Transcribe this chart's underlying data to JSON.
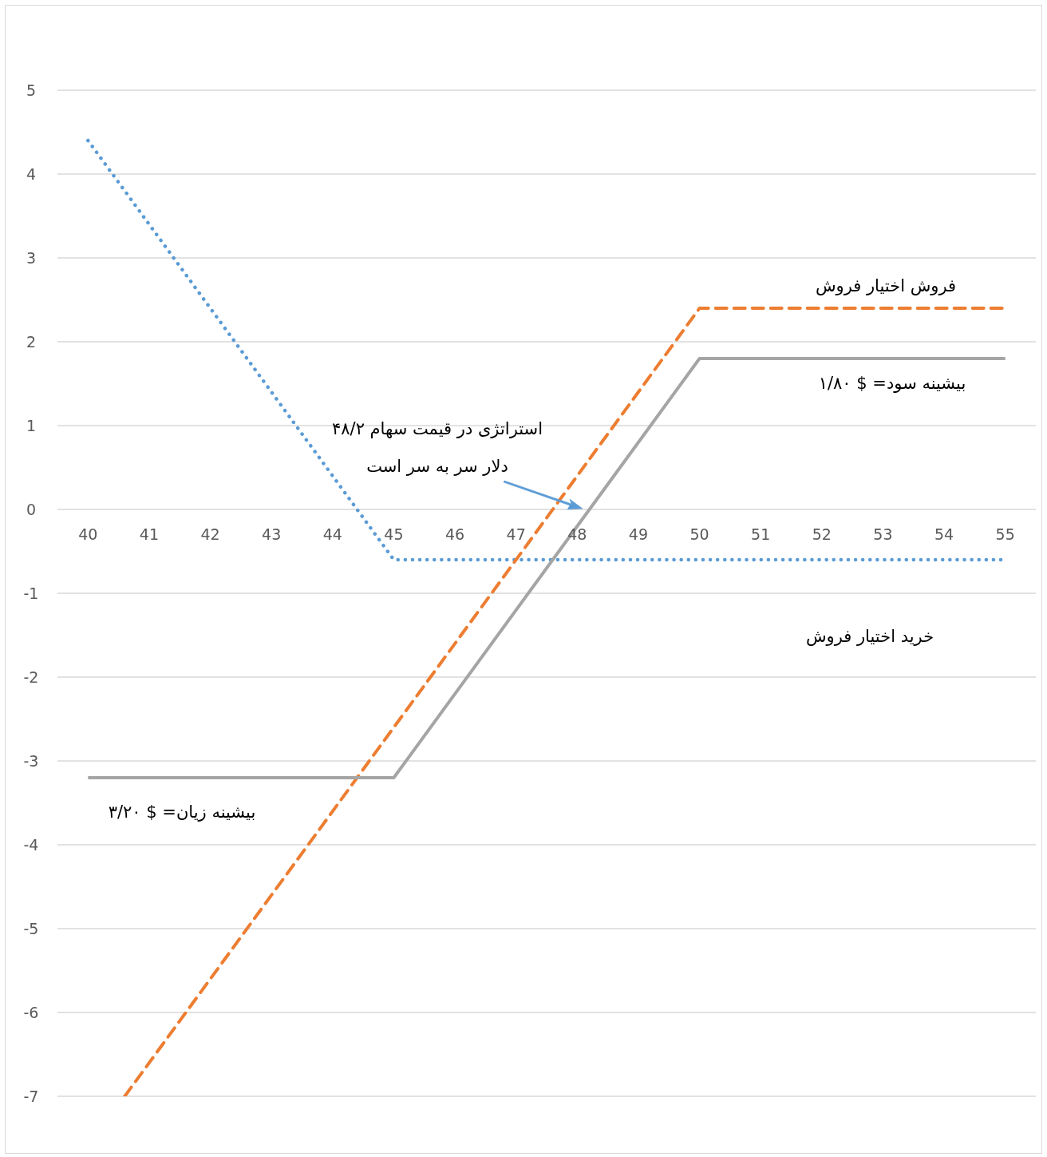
{
  "chart_data": {
    "type": "line",
    "xlim": [
      39.5,
      55.5
    ],
    "xticks": [
      40,
      41,
      42,
      43,
      44,
      45,
      46,
      47,
      48,
      49,
      50,
      51,
      52,
      53,
      54,
      55
    ],
    "ylim": [
      -7,
      5
    ],
    "yticks": [
      -7,
      -6,
      -5,
      -4,
      -3,
      -2,
      -1,
      0,
      1,
      2,
      3,
      4,
      5
    ],
    "grid": "y",
    "marker": "none",
    "series": [
      {
        "color": "#5b9bd5",
        "line_style": "dotted",
        "x": [
          40,
          45,
          55
        ],
        "values": [
          4.4,
          -0.6,
          -0.6
        ]
      },
      {
        "color": "#ed7d31",
        "line_style": "dashed",
        "x": [
          40.6,
          50,
          55
        ],
        "values": [
          -7,
          2.4,
          2.4
        ]
      },
      {
        "color": "#a5a5a5",
        "line_style": "solid",
        "x": [
          40,
          45,
          50,
          55
        ],
        "values": [
          -3.2,
          -3.2,
          1.8,
          1.8
        ]
      }
    ],
    "annotations": [
      "فروش اختیار فروش",
      "بیشینه سود= $ ۱/۸۰",
      "استراتژی در قیمت سهام ۴۸/۲\nدلار سر به سر است",
      "خرید اختیار فروش",
      "بیشینه زیان= $ ۳/۲۰"
    ]
  }
}
